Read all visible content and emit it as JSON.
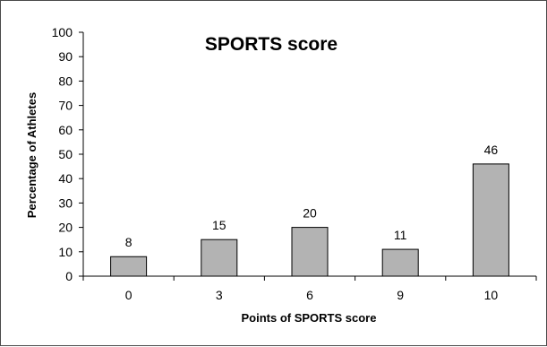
{
  "chart_data": {
    "type": "bar",
    "title": "SPORTS score",
    "xlabel": "Points of SPORTS score",
    "ylabel": "Percentage of Athletes",
    "categories": [
      "0",
      "3",
      "6",
      "9",
      "10"
    ],
    "values": [
      8,
      15,
      20,
      11,
      46
    ],
    "data_labels": [
      "8",
      "15",
      "20",
      "11",
      "46"
    ],
    "ylim": [
      0,
      100
    ],
    "yticks": [
      "0",
      "10",
      "20",
      "30",
      "40",
      "50",
      "60",
      "70",
      "80",
      "90",
      "100"
    ],
    "grid": false,
    "legend": "none",
    "colors": {
      "bar_fill": "#b3b3b3",
      "bar_stroke": "#000000",
      "axis": "#000000"
    }
  }
}
